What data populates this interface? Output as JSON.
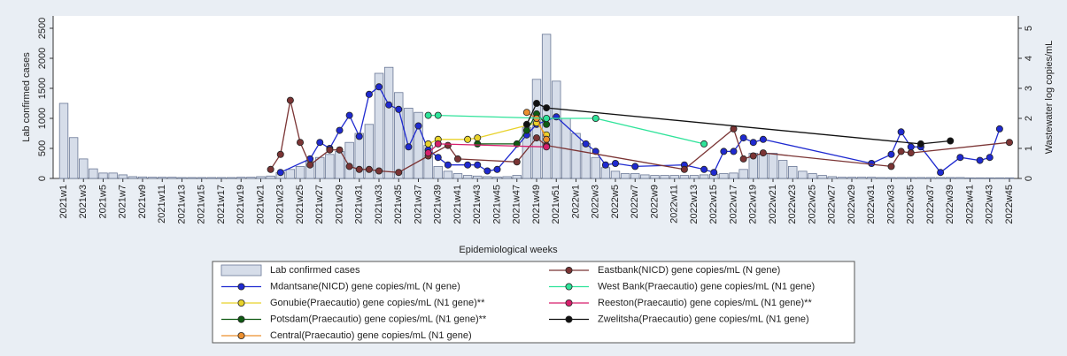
{
  "chart_data": {
    "type": "combo",
    "xlabel": "Epidemiological weeks",
    "ylabel": "Lab confirmed cases",
    "y2label": "Wastewater log copies/mL",
    "categories": [
      "2021w1",
      null,
      "2021w3",
      null,
      "2021w5",
      null,
      "2021w7",
      null,
      "2021w9",
      null,
      "2021w11",
      null,
      "2021w13",
      null,
      "2021w15",
      null,
      "2021w17",
      null,
      "2021w19",
      null,
      "2021w21",
      null,
      "2021w23",
      null,
      "2021w25",
      null,
      "2021w27",
      null,
      "2021w29",
      null,
      "2021w31",
      null,
      "2021w33",
      null,
      "2021w35",
      null,
      "2021w37",
      null,
      "2021w39",
      null,
      "2021w41",
      null,
      "2021w43",
      null,
      "2021w45",
      null,
      "2021w47",
      null,
      "2021w49",
      null,
      "2021w51",
      null,
      "2022w1",
      null,
      "2022w3",
      null,
      "2022w5",
      null,
      "2022w7",
      null,
      "2022w9",
      null,
      "2022w11",
      null,
      "2022w13",
      null,
      "2022w15",
      null,
      "2022w17",
      null,
      "2022w19",
      null,
      "2022w21",
      null,
      "2022w23",
      null,
      "2022w25",
      null,
      "2022w27",
      null,
      "2022w29",
      null,
      "2022w31",
      null,
      "2022w33",
      null,
      "2022w35",
      null,
      "2022w37",
      null,
      "2022w39",
      null,
      "2022w41",
      null,
      "2022w43",
      null,
      "2022w45"
    ],
    "ylim": [
      0,
      2500
    ],
    "yticks": [
      0,
      500,
      1000,
      1500,
      2000,
      2500
    ],
    "y2lim": [
      0,
      5
    ],
    "y2ticks": [
      0,
      1,
      2,
      3,
      4,
      5
    ],
    "connect_gaps": true,
    "legend": "bottom",
    "series": [
      {
        "name": "Lab confirmed cases",
        "type": "bar",
        "color": "#d6dde9",
        "edgecolor": "#6a7896",
        "values": [
          1250,
          680,
          325,
          160,
          90,
          90,
          60,
          30,
          25,
          20,
          20,
          20,
          15,
          15,
          15,
          15,
          15,
          15,
          20,
          20,
          30,
          40,
          100,
          150,
          200,
          280,
          350,
          400,
          450,
          600,
          750,
          900,
          1750,
          1850,
          1430,
          1170,
          1100,
          550,
          200,
          120,
          80,
          50,
          40,
          30,
          25,
          30,
          50,
          850,
          1650,
          2400,
          1620,
          1000,
          750,
          580,
          350,
          180,
          120,
          80,
          80,
          60,
          50,
          50,
          50,
          50,
          50,
          60,
          70,
          80,
          90,
          150,
          420,
          400,
          420,
          300,
          200,
          120,
          80,
          50,
          30,
          20,
          20,
          20,
          20,
          15,
          15,
          15,
          15,
          15,
          15,
          15,
          15,
          15,
          10,
          10,
          10,
          10,
          10
        ]
      },
      {
        "name": "Mdantsane(NICD) gene copies/mL (N gene)",
        "type": "line",
        "axis": "y2",
        "color": "#1f2ad0",
        "values": [
          null,
          null,
          null,
          null,
          null,
          null,
          null,
          null,
          null,
          null,
          null,
          null,
          null,
          null,
          null,
          null,
          null,
          null,
          null,
          null,
          null,
          null,
          0.2,
          null,
          null,
          0.65,
          1.2,
          1.0,
          1.6,
          2.1,
          1.4,
          2.8,
          3.05,
          2.45,
          2.3,
          1.05,
          1.75,
          0.95,
          0.7,
          0.45,
          null,
          0.45,
          0.45,
          0.25,
          0.3,
          null,
          null,
          1.45,
          1.8,
          null,
          2.05,
          null,
          null,
          1.15,
          0.9,
          0.45,
          0.5,
          null,
          0.4,
          null,
          null,
          null,
          null,
          0.45,
          null,
          0.3,
          0.2,
          0.9,
          0.9,
          1.35,
          1.2,
          1.3,
          null,
          null,
          null,
          null,
          null,
          null,
          null,
          null,
          null,
          null,
          0.5,
          null,
          0.8,
          1.55,
          1.05,
          1.05,
          null,
          0.2,
          null,
          0.7,
          null,
          0.6,
          0.7,
          1.65,
          null
        ]
      },
      {
        "name": "Gonubie(Praecautio) gene copies/mL (N1 gene)**",
        "type": "line",
        "axis": "y2",
        "color": "#e8d22a",
        "values": [
          null,
          null,
          null,
          null,
          null,
          null,
          null,
          null,
          null,
          null,
          null,
          null,
          null,
          null,
          null,
          null,
          null,
          null,
          null,
          null,
          null,
          null,
          null,
          null,
          null,
          null,
          null,
          null,
          null,
          null,
          null,
          null,
          null,
          null,
          null,
          null,
          null,
          1.15,
          1.3,
          null,
          null,
          1.3,
          1.35,
          null,
          null,
          null,
          null,
          null,
          1.85,
          1.45,
          null,
          null,
          null,
          null,
          null,
          null,
          null,
          null,
          null,
          null,
          null,
          null,
          null,
          null,
          null,
          null,
          null,
          null,
          null,
          null,
          null,
          null,
          null,
          null,
          null,
          null,
          null,
          null,
          null,
          null,
          null,
          null,
          null,
          null,
          null,
          null,
          null,
          null,
          null,
          null,
          null,
          null,
          null,
          null,
          null,
          null,
          null
        ]
      },
      {
        "name": "Potsdam(Praecautio) gene copies/mL (N1 gene)**",
        "type": "line",
        "axis": "y2",
        "color": "#0f5a12",
        "values": [
          null,
          null,
          null,
          null,
          null,
          null,
          null,
          null,
          null,
          null,
          null,
          null,
          null,
          null,
          null,
          null,
          null,
          null,
          null,
          null,
          null,
          null,
          null,
          null,
          null,
          null,
          null,
          null,
          null,
          null,
          null,
          null,
          null,
          null,
          null,
          null,
          null,
          null,
          null,
          null,
          null,
          null,
          1.15,
          null,
          null,
          null,
          1.15,
          1.6,
          2.15,
          1.8,
          null,
          null,
          null,
          null,
          null,
          null,
          null,
          null,
          null,
          null,
          null,
          null,
          null,
          null,
          null,
          null,
          null,
          null,
          null,
          null,
          null,
          null,
          null,
          null,
          null,
          null,
          null,
          null,
          null,
          null,
          null,
          null,
          null,
          null,
          null,
          null,
          null,
          null,
          null,
          null,
          null,
          null,
          null,
          null,
          null,
          null,
          null
        ]
      },
      {
        "name": "Central(Praecautio) gene copies/mL (N1 gene)",
        "type": "line",
        "axis": "y2",
        "color": "#ec8f2e",
        "values": [
          null,
          null,
          null,
          null,
          null,
          null,
          null,
          null,
          null,
          null,
          null,
          null,
          null,
          null,
          null,
          null,
          null,
          null,
          null,
          null,
          null,
          null,
          null,
          null,
          null,
          null,
          null,
          null,
          null,
          null,
          null,
          null,
          null,
          null,
          null,
          null,
          null,
          null,
          null,
          null,
          null,
          null,
          null,
          null,
          null,
          null,
          null,
          2.2,
          2.0,
          1.3,
          null,
          null,
          null,
          null,
          null,
          null,
          null,
          null,
          null,
          null,
          null,
          null,
          null,
          null,
          null,
          null,
          null,
          null,
          null,
          null,
          null,
          null,
          null,
          null,
          null,
          null,
          null,
          null,
          null,
          null,
          null,
          null,
          null,
          null,
          null,
          null,
          null,
          null,
          null,
          null,
          null,
          null,
          null,
          null,
          null,
          null,
          null
        ]
      },
      {
        "name": "Eastbank(NICD) gene copies/mL (N gene)",
        "type": "line",
        "axis": "y2",
        "color": "#7b3434",
        "values": [
          null,
          null,
          null,
          null,
          null,
          null,
          null,
          null,
          null,
          null,
          null,
          null,
          null,
          null,
          null,
          null,
          null,
          null,
          null,
          null,
          null,
          0.3,
          0.8,
          2.6,
          1.2,
          0.45,
          null,
          0.95,
          0.95,
          0.4,
          0.3,
          0.3,
          0.25,
          null,
          0.2,
          null,
          null,
          0.75,
          null,
          1.1,
          0.65,
          null,
          null,
          null,
          null,
          null,
          0.55,
          null,
          1.35,
          1.1,
          null,
          null,
          null,
          null,
          null,
          null,
          null,
          null,
          null,
          null,
          null,
          null,
          null,
          0.3,
          null,
          null,
          null,
          null,
          1.65,
          0.65,
          0.75,
          0.85,
          null,
          null,
          null,
          null,
          null,
          null,
          null,
          null,
          null,
          null,
          null,
          null,
          0.4,
          0.9,
          0.85,
          null,
          null,
          null,
          null,
          null,
          null,
          null,
          null,
          null,
          1.2
        ]
      },
      {
        "name": "West Bank(Praecautio) gene copies/mL (N1 gene)",
        "type": "line",
        "axis": "y2",
        "color": "#2fe39a",
        "values": [
          null,
          null,
          null,
          null,
          null,
          null,
          null,
          null,
          null,
          null,
          null,
          null,
          null,
          null,
          null,
          null,
          null,
          null,
          null,
          null,
          null,
          null,
          null,
          null,
          null,
          null,
          null,
          null,
          null,
          null,
          null,
          null,
          null,
          null,
          null,
          null,
          null,
          2.1,
          2.1,
          null,
          null,
          null,
          null,
          null,
          null,
          null,
          null,
          null,
          null,
          2.0,
          null,
          null,
          null,
          null,
          2.0,
          null,
          null,
          null,
          null,
          null,
          null,
          null,
          null,
          null,
          null,
          1.15,
          null,
          null,
          null,
          null,
          null,
          null,
          null,
          null,
          null,
          null,
          null,
          null,
          null,
          null,
          null,
          null,
          null,
          null,
          null,
          null,
          null,
          null,
          null,
          null,
          null,
          null,
          null,
          null,
          null,
          null,
          null
        ]
      },
      {
        "name": "Reeston(Praecautio) gene copies/mL (N1 gene)**",
        "type": "line",
        "axis": "y2",
        "color": "#d61f6c",
        "values": [
          null,
          null,
          null,
          null,
          null,
          null,
          null,
          null,
          null,
          null,
          null,
          null,
          null,
          null,
          null,
          null,
          null,
          null,
          null,
          null,
          null,
          null,
          null,
          null,
          null,
          null,
          null,
          null,
          null,
          null,
          null,
          null,
          null,
          null,
          null,
          null,
          null,
          0.85,
          1.15,
          null,
          null,
          null,
          null,
          null,
          null,
          null,
          null,
          null,
          null,
          1.05,
          null,
          null,
          null,
          null,
          null,
          null,
          null,
          null,
          null,
          null,
          null,
          null,
          null,
          null,
          null,
          null,
          null,
          null,
          null,
          null,
          null,
          null,
          null,
          null,
          null,
          null,
          null,
          null,
          null,
          null,
          null,
          null,
          null,
          null,
          null,
          null,
          null,
          null,
          null,
          null,
          null,
          null,
          null,
          null,
          null,
          null,
          null
        ]
      },
      {
        "name": "Zwelitsha(Praecautio) gene copies/mL (N1 gene)",
        "type": "line",
        "axis": "y2",
        "color": "#111111",
        "values": [
          null,
          null,
          null,
          null,
          null,
          null,
          null,
          null,
          null,
          null,
          null,
          null,
          null,
          null,
          null,
          null,
          null,
          null,
          null,
          null,
          null,
          null,
          null,
          null,
          null,
          null,
          null,
          null,
          null,
          null,
          null,
          null,
          null,
          null,
          null,
          null,
          null,
          null,
          null,
          null,
          null,
          null,
          null,
          null,
          null,
          null,
          null,
          1.8,
          2.5,
          2.35,
          null,
          null,
          null,
          null,
          null,
          null,
          null,
          null,
          null,
          null,
          null,
          null,
          null,
          null,
          null,
          null,
          null,
          null,
          null,
          null,
          null,
          null,
          null,
          null,
          null,
          null,
          null,
          null,
          null,
          null,
          null,
          null,
          null,
          null,
          null,
          null,
          null,
          1.15,
          null,
          null,
          1.25,
          null,
          null,
          null,
          null,
          null,
          null
        ]
      }
    ]
  }
}
